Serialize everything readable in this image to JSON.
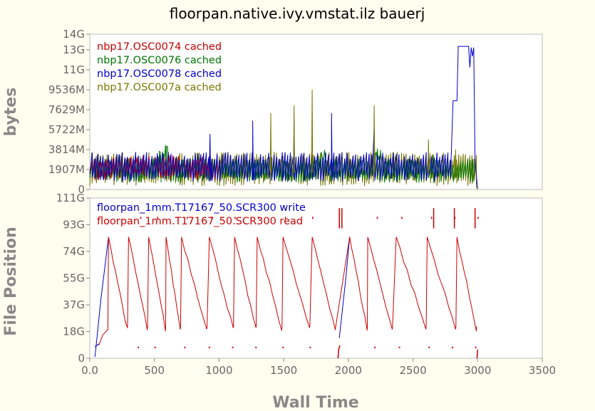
{
  "title": "floorpan.native.ivy.vmstat.ilz bauerj",
  "chart_data": [
    {
      "type": "line",
      "ylabel": "bytes",
      "y_ticks": [
        "0",
        "1907M",
        "3814M",
        "5722M",
        "7629M",
        "9536M",
        "11G",
        "13G",
        "14G"
      ],
      "ylim": [
        0,
        14
      ],
      "xlim": [
        0,
        3500
      ],
      "legend_position": "top-left",
      "series": [
        {
          "name": "nbp17.OSC0074 cached",
          "color": "#cc0000"
        },
        {
          "name": "nbp17.OSC0076 cached",
          "color": "#007700"
        },
        {
          "name": "nbp17.OSC0078 cached",
          "color": "#0000cc"
        },
        {
          "name": "nbp17.OSC007a cached",
          "color": "#777700"
        }
      ]
    },
    {
      "type": "line",
      "xlabel": "Wall Time",
      "ylabel": "File Position",
      "x_ticks": [
        "0.0",
        "500",
        "1000",
        "1500",
        "2000",
        "2500",
        "3000",
        "3500"
      ],
      "y_ticks": [
        "0",
        "18G",
        "37G",
        "55G",
        "74G",
        "93G",
        "111G"
      ],
      "xlim": [
        0,
        3500
      ],
      "ylim": [
        0,
        111
      ],
      "legend_position": "top-left",
      "series": [
        {
          "name": "floorpan_1mm.T17167_50.SCR300 write",
          "color": "#0000cc"
        },
        {
          "name": "floorpan_1mm.T17167_50.SCR300 read",
          "color": "#cc0000"
        }
      ]
    }
  ]
}
